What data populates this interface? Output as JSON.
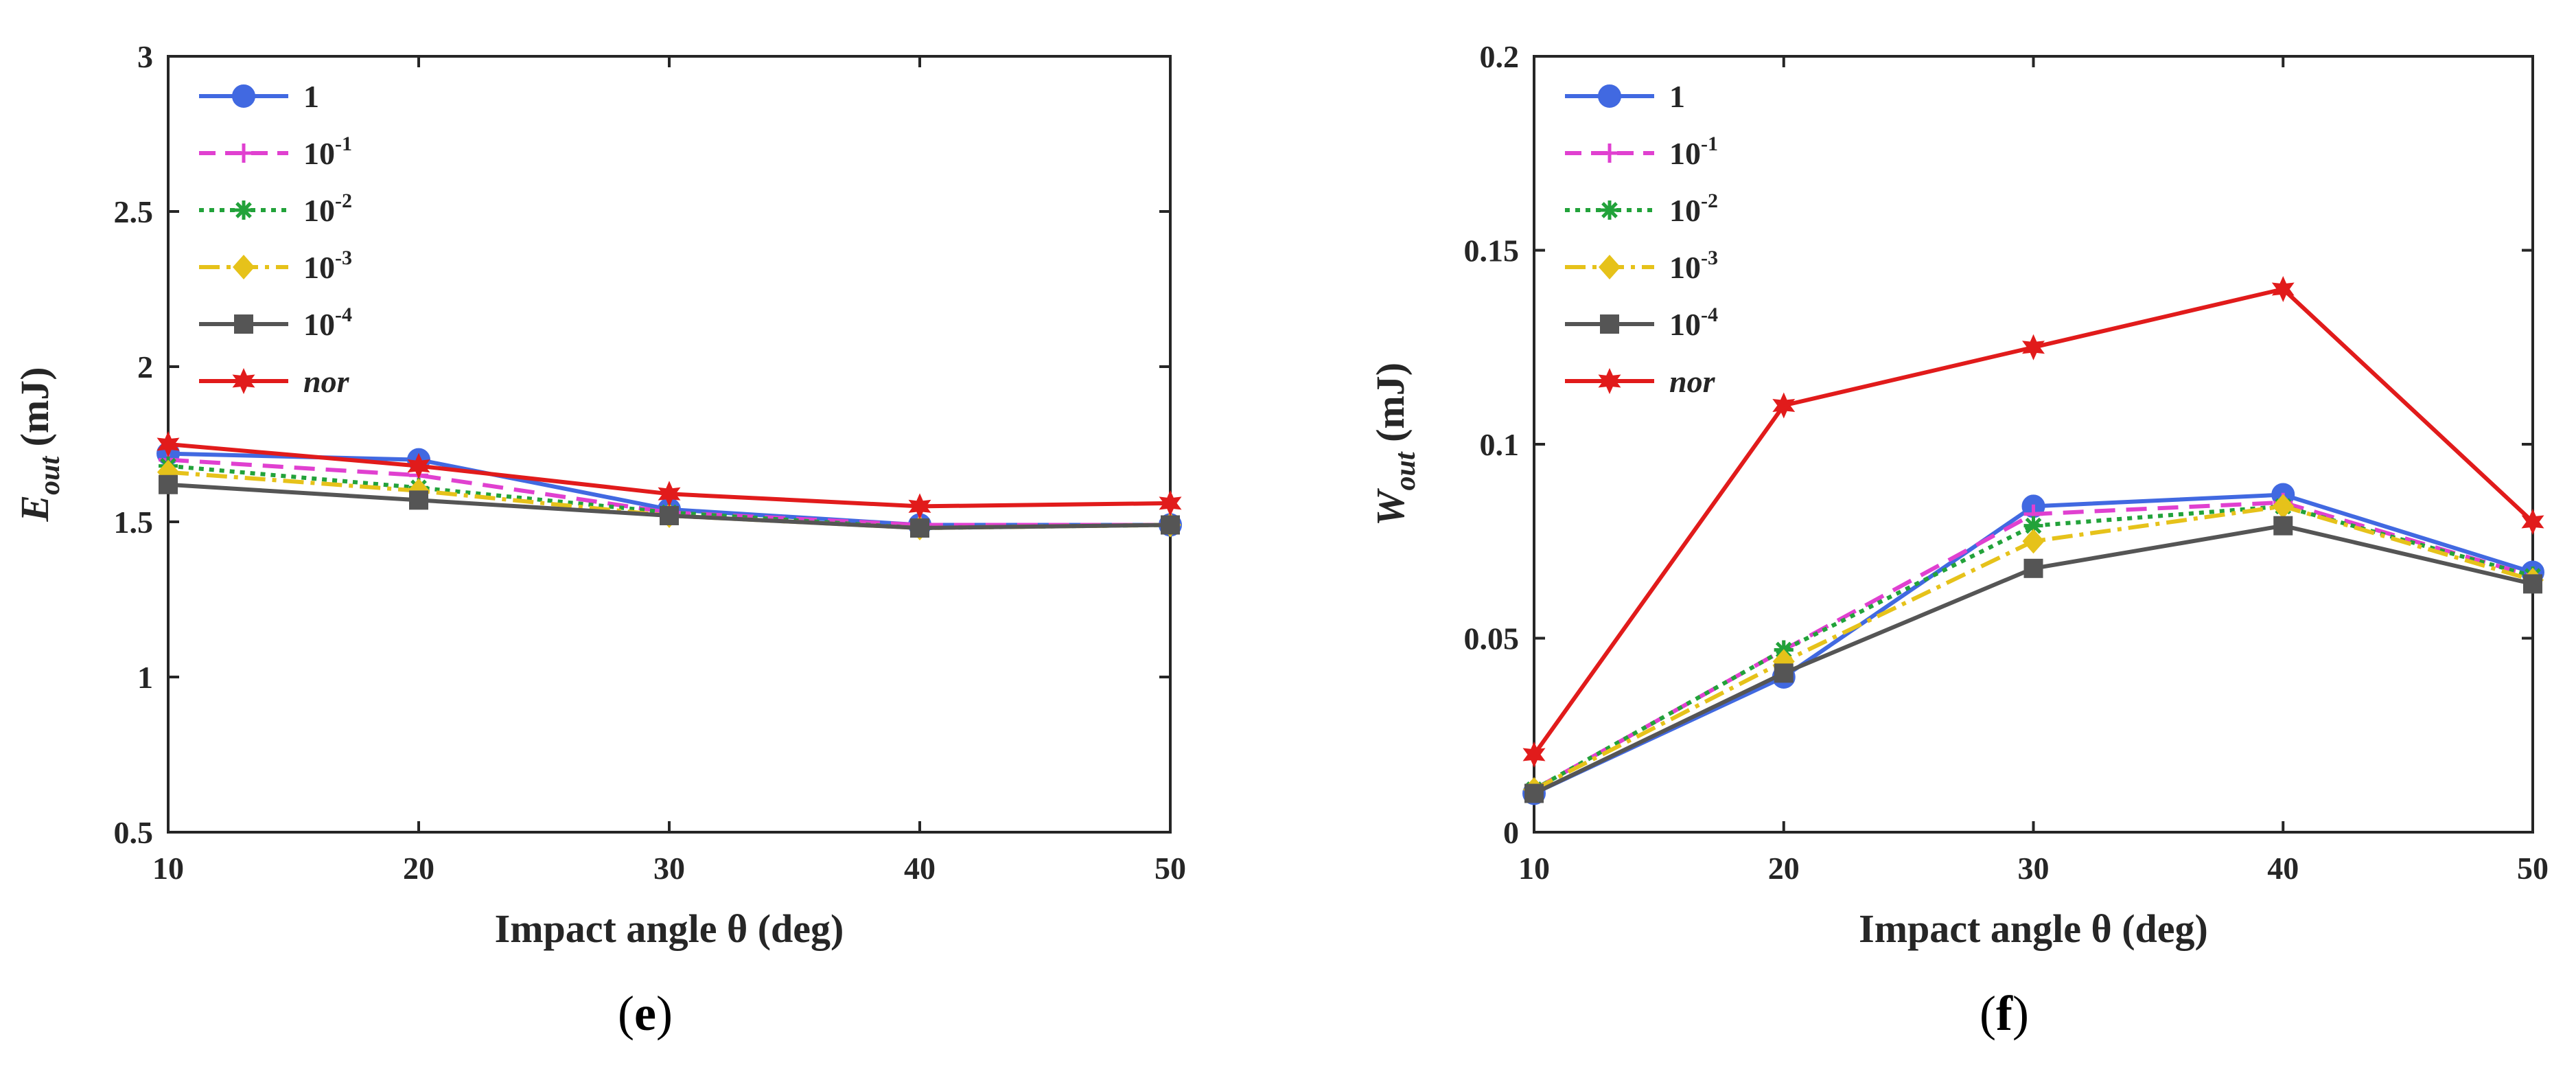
{
  "chart_data": [
    {
      "type": "line",
      "panel": "e",
      "caption": "(e)",
      "xlabel": "Impact angle θ (deg)",
      "ylabel": "E_out (mJ)",
      "ylabel_main": "E",
      "ylabel_sub": "out",
      "ylabel_unit": "(mJ)",
      "x": [
        10,
        20,
        30,
        40,
        50
      ],
      "xlim": [
        10,
        50
      ],
      "ylim": [
        0.5,
        3
      ],
      "xticks": [
        10,
        20,
        30,
        40,
        50
      ],
      "xtick_labels": [
        "10",
        "20",
        "30",
        "40",
        "50"
      ],
      "yticks": [
        0.5,
        1,
        1.5,
        2,
        2.5,
        3
      ],
      "ytick_labels": [
        "0.5",
        "1",
        "1.5",
        "2",
        "2.5",
        "3"
      ],
      "legend_position": "top-left",
      "series": [
        {
          "name": "1",
          "values": [
            1.72,
            1.7,
            1.54,
            1.49,
            1.49
          ]
        },
        {
          "name": "10^-1",
          "values": [
            1.7,
            1.65,
            1.53,
            1.49,
            1.49
          ]
        },
        {
          "name": "10^-2",
          "values": [
            1.68,
            1.61,
            1.53,
            1.48,
            1.49
          ]
        },
        {
          "name": "10^-3",
          "values": [
            1.66,
            1.6,
            1.52,
            1.48,
            1.49
          ]
        },
        {
          "name": "10^-4",
          "values": [
            1.62,
            1.57,
            1.52,
            1.48,
            1.49
          ]
        },
        {
          "name": "nor",
          "values": [
            1.75,
            1.68,
            1.59,
            1.55,
            1.56
          ]
        }
      ]
    },
    {
      "type": "line",
      "panel": "f",
      "caption": "(f)",
      "xlabel": "Impact angle θ (deg)",
      "ylabel": "W_out (mJ)",
      "ylabel_main": "W",
      "ylabel_sub": "out",
      "ylabel_unit": "(mJ)",
      "x": [
        10,
        20,
        30,
        40,
        50
      ],
      "xlim": [
        10,
        50
      ],
      "ylim": [
        0,
        0.2
      ],
      "xticks": [
        10,
        20,
        30,
        40,
        50
      ],
      "xtick_labels": [
        "10",
        "20",
        "30",
        "40",
        "50"
      ],
      "yticks": [
        0,
        0.05,
        0.1,
        0.15,
        0.2
      ],
      "ytick_labels": [
        "0",
        "0.05",
        "0.1",
        "0.15",
        "0.2"
      ],
      "legend_position": "top-left",
      "series": [
        {
          "name": "1",
          "values": [
            0.01,
            0.04,
            0.084,
            0.087,
            0.067
          ]
        },
        {
          "name": "10^-1",
          "values": [
            0.011,
            0.047,
            0.082,
            0.085,
            0.066
          ]
        },
        {
          "name": "10^-2",
          "values": [
            0.011,
            0.047,
            0.079,
            0.084,
            0.066
          ]
        },
        {
          "name": "10^-3",
          "values": [
            0.011,
            0.044,
            0.075,
            0.084,
            0.065
          ]
        },
        {
          "name": "10^-4",
          "values": [
            0.01,
            0.041,
            0.068,
            0.079,
            0.064
          ]
        },
        {
          "name": "nor",
          "values": [
            0.02,
            0.11,
            0.125,
            0.14,
            0.08
          ]
        }
      ]
    }
  ],
  "legend": [
    {
      "base": "1",
      "sup": ""
    },
    {
      "base": "10",
      "sup": "-1"
    },
    {
      "base": "10",
      "sup": "-2"
    },
    {
      "base": "10",
      "sup": "-3"
    },
    {
      "base": "10",
      "sup": "-4"
    },
    {
      "base": "nor",
      "sup": "",
      "italic": true
    }
  ],
  "styles": [
    {
      "color": "#4169e1",
      "dash": "",
      "marker": "circle"
    },
    {
      "color": "#e040d0",
      "dash": "30,16",
      "marker": "plus"
    },
    {
      "color": "#22a23a",
      "dash": "7,8",
      "marker": "asterisk"
    },
    {
      "color": "#e6c21a",
      "dash": "30,10,6,10",
      "marker": "diamond"
    },
    {
      "color": "#555555",
      "dash": "",
      "marker": "square"
    },
    {
      "color": "#e11b1b",
      "dash": "",
      "marker": "star"
    }
  ]
}
